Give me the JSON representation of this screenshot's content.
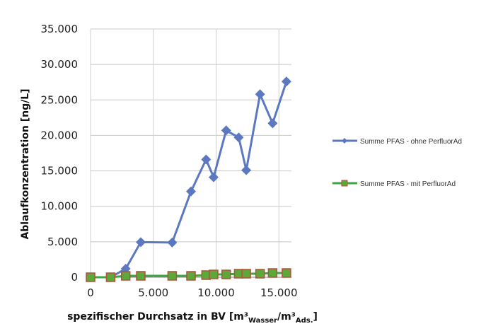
{
  "chart_data": {
    "type": "line",
    "title": "",
    "xlabel": "spezifischer Durchsatz in BV [m³Wasser/m³Ads.]",
    "xlabel_parts": {
      "main": "spezifischer Durchsatz in BV [m³",
      "sub1": "Wasser",
      "mid": "/m³",
      "sub2": "Ads.",
      "end": "]"
    },
    "ylabel": "Ablaufkonzentration [ng/L]",
    "xlim": [
      0,
      16000
    ],
    "ylim": [
      0,
      35000
    ],
    "x_ticks": [
      0,
      5000,
      10000,
      15000
    ],
    "x_tick_labels": [
      "0",
      "5.000",
      "10.000",
      "15.000"
    ],
    "y_ticks": [
      0,
      5000,
      10000,
      15000,
      20000,
      25000,
      30000,
      35000
    ],
    "y_tick_labels": [
      "0",
      "5.000",
      "10.000",
      "15.000",
      "20.000",
      "25.000",
      "30.000",
      "35.000"
    ],
    "grid": "vertical-and-horizontal",
    "legend_position": "right",
    "series": [
      {
        "name": "Summe PFAS - ohne PerfluorAd",
        "color": "#5b78c0",
        "marker": "diamond",
        "points": [
          [
            0,
            0
          ],
          [
            1600,
            0
          ],
          [
            2800,
            1200
          ],
          [
            4000,
            4950
          ],
          [
            6500,
            4900
          ],
          [
            8000,
            12100
          ],
          [
            9200,
            16600
          ],
          [
            9800,
            14100
          ],
          [
            10800,
            20700
          ],
          [
            11800,
            19700
          ],
          [
            12400,
            15100
          ],
          [
            13500,
            25800
          ],
          [
            14500,
            21700
          ],
          [
            15600,
            27600
          ]
        ]
      },
      {
        "name": "Summe PFAS - mit PerfluorAd",
        "color": "#41a444",
        "marker": "square",
        "marker_fill": "#5da838",
        "marker_edge": "#b5503c",
        "points": [
          [
            0,
            0
          ],
          [
            1600,
            0
          ],
          [
            2800,
            200
          ],
          [
            4000,
            200
          ],
          [
            6500,
            200
          ],
          [
            8000,
            200
          ],
          [
            9200,
            300
          ],
          [
            9800,
            400
          ],
          [
            10800,
            400
          ],
          [
            11800,
            500
          ],
          [
            12400,
            500
          ],
          [
            13500,
            500
          ],
          [
            14500,
            600
          ],
          [
            15600,
            600
          ]
        ]
      }
    ]
  }
}
